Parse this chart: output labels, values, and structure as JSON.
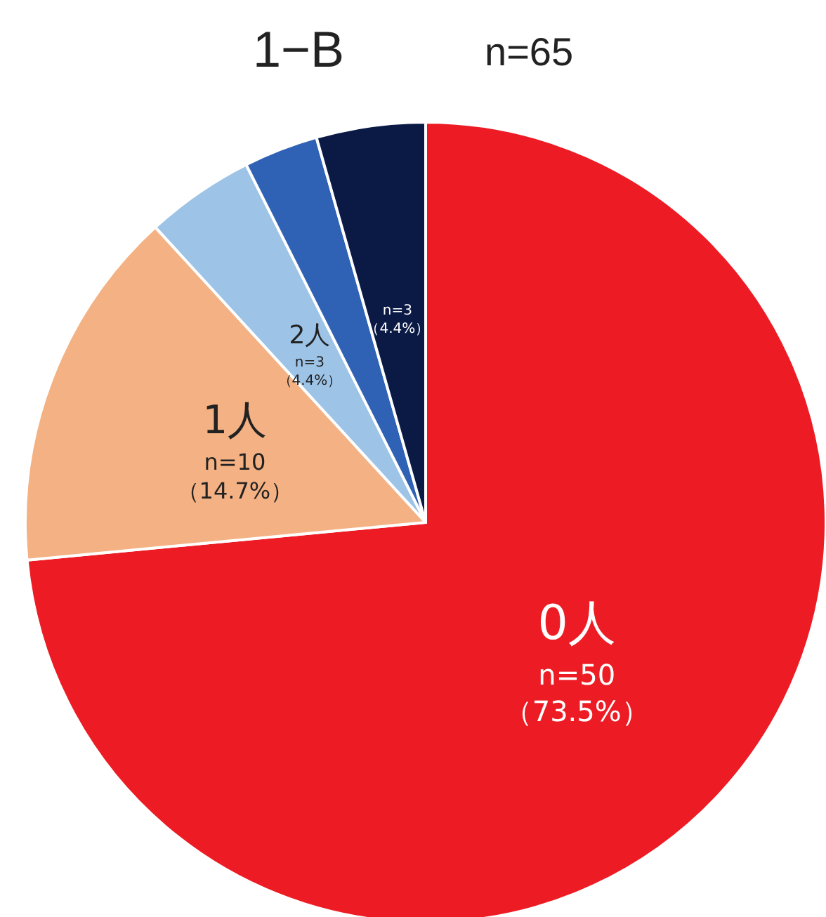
{
  "chart_data": {
    "type": "pie",
    "title": "1−B",
    "subtitle": "n=65",
    "categories": [
      "0人",
      "1人",
      "2人",
      null,
      null
    ],
    "values": [
      73.5,
      14.7,
      4.4,
      3.0,
      4.4
    ],
    "colors": [
      "#ed1c24",
      "#f4b183",
      "#9dc3e6",
      "#2f62b4",
      "#0b1a45"
    ],
    "value_labels": [
      "n=50\n（73.5%）",
      "n=10\n（14.7%）",
      "n=3\n（4.4%）",
      null,
      "n=3\n（4.4%）"
    ],
    "legend": false
  }
}
